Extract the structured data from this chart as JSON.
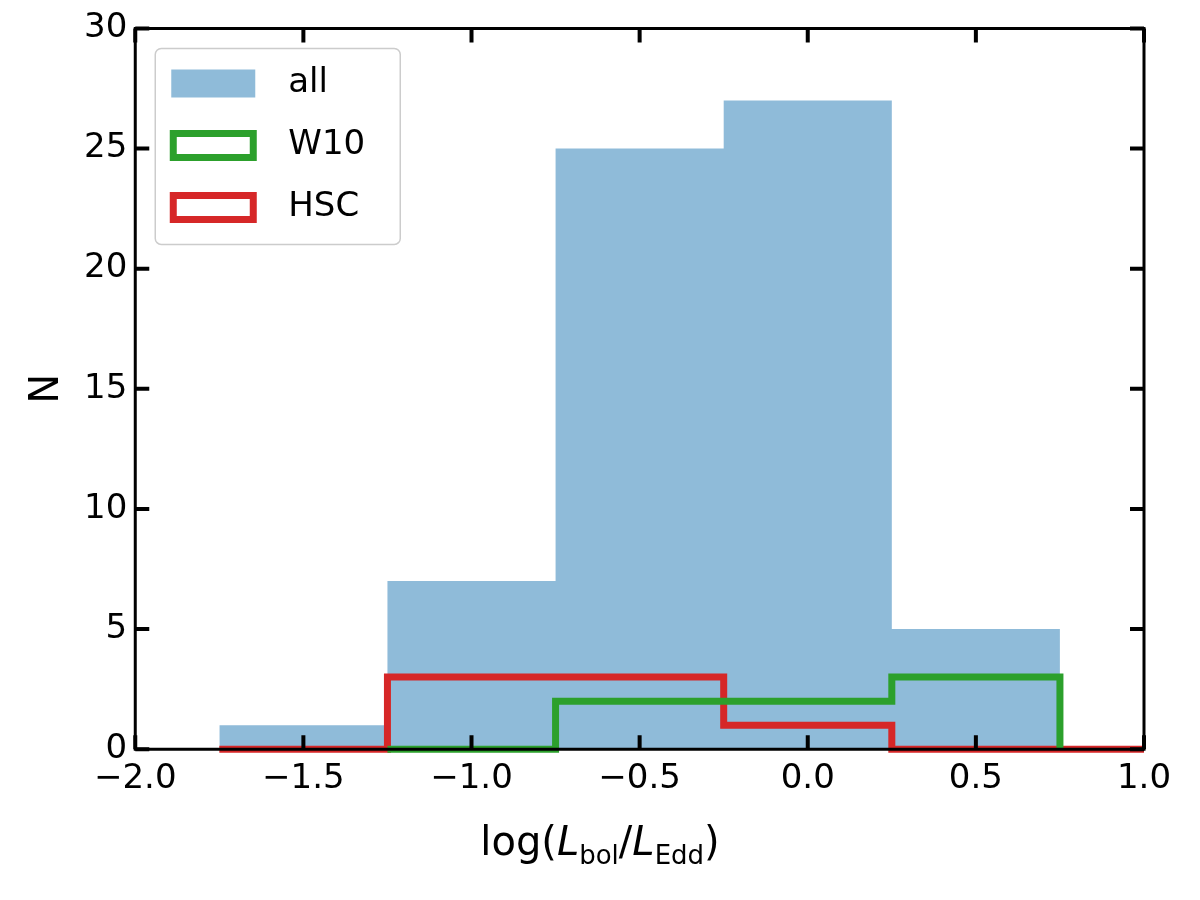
{
  "chart_data": {
    "type": "histogram",
    "xlabel": "log(L$_{bol}$/L$_{Edd}$)",
    "ylabel": "N",
    "xlim": [
      -2,
      1
    ],
    "xticks": [
      {
        "value": -2,
        "label": "−2.0"
      },
      {
        "value": -1.5,
        "label": "−1.5"
      },
      {
        "value": -1,
        "label": "−1.0"
      },
      {
        "value": -0.5,
        "label": "−0.5"
      },
      {
        "value": 0,
        "label": "0.0"
      },
      {
        "value": 0.5,
        "label": "0.5"
      },
      {
        "value": 1,
        "label": "1.0"
      }
    ],
    "ylim": [
      0,
      30
    ],
    "yticks": [
      0,
      5,
      10,
      15,
      20,
      25,
      30
    ],
    "grid": false,
    "legend": "top left",
    "bins": [
      -1.75,
      -1.25,
      -0.75,
      -0.25,
      0.25,
      0.75
    ],
    "series": [
      {
        "name": "all",
        "color": "#8fbbd9",
        "values": [
          1,
          7,
          25,
          27,
          5
        ]
      },
      {
        "name": "W10",
        "type": "step",
        "color": "#2ca02c",
        "x": [
          -1.25,
          -0.75,
          0.25,
          0.75
        ],
        "values": [
          0,
          2,
          3,
          0
        ]
      },
      {
        "name": "HSC",
        "type": "step",
        "color": "#d62728",
        "x": [
          -1.75,
          -1.25,
          -0.25,
          0.25,
          1
        ],
        "values": [
          0,
          3,
          1,
          0,
          0
        ]
      }
    ]
  }
}
